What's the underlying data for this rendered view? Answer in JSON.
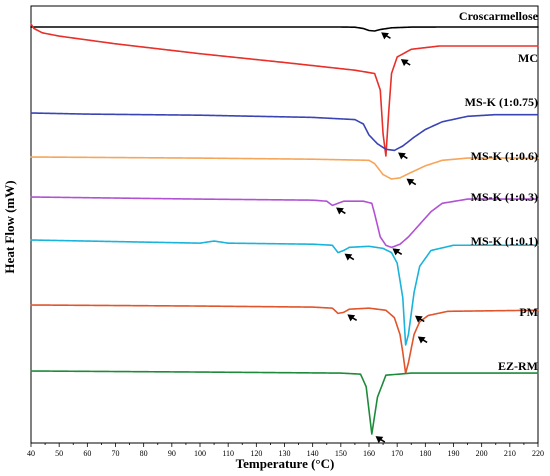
{
  "chart_data": {
    "type": "line",
    "xlabel": "Temperature (°C)",
    "ylabel": "Heat Flow (mW)",
    "xlim": [
      40,
      220
    ],
    "x_ticks": [
      40,
      50,
      60,
      70,
      80,
      90,
      100,
      110,
      120,
      130,
      140,
      150,
      160,
      170,
      180,
      190,
      200,
      210,
      220
    ],
    "series": [
      {
        "name": "Croscarmellose",
        "color": "#000000",
        "points": [
          [
            40,
            0
          ],
          [
            150,
            0
          ],
          [
            155,
            -0.2
          ],
          [
            158,
            -1.5
          ],
          [
            160,
            -3.5
          ],
          [
            162,
            -4
          ],
          [
            164,
            -2.5
          ],
          [
            168,
            -0.8
          ],
          [
            175,
            -0.1
          ],
          [
            185,
            0
          ],
          [
            220,
            0
          ]
        ],
        "arrows": [
          163
        ]
      },
      {
        "name": "MC",
        "color": "#e8302a",
        "points": [
          [
            40,
            0
          ],
          [
            41,
            -4
          ],
          [
            44,
            -8
          ],
          [
            50,
            -11
          ],
          [
            70,
            -18
          ],
          [
            100,
            -27
          ],
          [
            130,
            -35
          ],
          [
            155,
            -42
          ],
          [
            162,
            -45
          ],
          [
            164,
            -60
          ],
          [
            165,
            -100
          ],
          [
            166,
            -120
          ],
          [
            167,
            -80
          ],
          [
            168,
            -45
          ],
          [
            170,
            -30
          ],
          [
            175,
            -23
          ],
          [
            185,
            -20
          ],
          [
            200,
            -20
          ],
          [
            220,
            -20
          ]
        ],
        "arrows": [
          170
        ]
      },
      {
        "name": "MS-K (1:0.75)",
        "color": "#3a44b5",
        "points": [
          [
            40,
            0
          ],
          [
            60,
            -1
          ],
          [
            100,
            -2
          ],
          [
            140,
            -4
          ],
          [
            155,
            -6
          ],
          [
            158,
            -10
          ],
          [
            160,
            -20
          ],
          [
            163,
            -28
          ],
          [
            166,
            -33
          ],
          [
            169,
            -34
          ],
          [
            172,
            -30
          ],
          [
            176,
            -22
          ],
          [
            180,
            -15
          ],
          [
            186,
            -8
          ],
          [
            195,
            -3
          ],
          [
            205,
            -1.5
          ],
          [
            220,
            -1.5
          ]
        ],
        "arrows": [
          169
        ]
      },
      {
        "name": "MS-K (1:0.6)",
        "color": "#f6a55a",
        "points": [
          [
            40,
            0
          ],
          [
            100,
            -1
          ],
          [
            140,
            -2
          ],
          [
            160,
            -3
          ],
          [
            162,
            -6
          ],
          [
            165,
            -16
          ],
          [
            168,
            -20
          ],
          [
            171,
            -19
          ],
          [
            175,
            -14
          ],
          [
            180,
            -8
          ],
          [
            186,
            -3
          ],
          [
            195,
            -1
          ],
          [
            220,
            -1
          ]
        ],
        "arrows": [
          172
        ]
      },
      {
        "name": "MS-K (1:0.3)",
        "color": "#b152d4",
        "points": [
          [
            40,
            0
          ],
          [
            100,
            -2
          ],
          [
            140,
            -3
          ],
          [
            145,
            -4
          ],
          [
            147,
            -8
          ],
          [
            149,
            -6
          ],
          [
            151,
            -4
          ],
          [
            158,
            -4
          ],
          [
            161,
            -6
          ],
          [
            162,
            -16
          ],
          [
            164,
            -38
          ],
          [
            166,
            -46
          ],
          [
            168,
            -48
          ],
          [
            171,
            -45
          ],
          [
            174,
            -38
          ],
          [
            178,
            -26
          ],
          [
            182,
            -14
          ],
          [
            186,
            -6
          ],
          [
            195,
            -2
          ],
          [
            220,
            -2
          ]
        ],
        "arrows": [
          147,
          167
        ]
      },
      {
        "name": "MS-K (1:0.1)",
        "color": "#1ab3db",
        "points": [
          [
            40,
            0
          ],
          [
            100,
            -3
          ],
          [
            105,
            -1
          ],
          [
            110,
            -3
          ],
          [
            140,
            -4
          ],
          [
            147,
            -5
          ],
          [
            149,
            -12
          ],
          [
            151,
            -10
          ],
          [
            153,
            -7
          ],
          [
            160,
            -6
          ],
          [
            165,
            -8
          ],
          [
            168,
            -12
          ],
          [
            170,
            -22
          ],
          [
            172,
            -55
          ],
          [
            173,
            -100
          ],
          [
            174,
            -90
          ],
          [
            176,
            -50
          ],
          [
            178,
            -25
          ],
          [
            182,
            -10
          ],
          [
            190,
            -5
          ],
          [
            220,
            -5
          ]
        ],
        "arrows": [
          150,
          175
        ]
      },
      {
        "name": "PM",
        "color": "#e0552b",
        "points": [
          [
            40,
            0
          ],
          [
            100,
            -1
          ],
          [
            140,
            -2
          ],
          [
            147,
            -3
          ],
          [
            149,
            -8
          ],
          [
            151,
            -7
          ],
          [
            153,
            -4
          ],
          [
            160,
            -3
          ],
          [
            166,
            -5
          ],
          [
            169,
            -12
          ],
          [
            171,
            -28
          ],
          [
            172,
            -45
          ],
          [
            173,
            -65
          ],
          [
            174,
            -55
          ],
          [
            176,
            -28
          ],
          [
            178,
            -16
          ],
          [
            181,
            -10
          ],
          [
            188,
            -6
          ],
          [
            220,
            -5
          ]
        ],
        "arrows": [
          151,
          176
        ]
      },
      {
        "name": "EZ-RM",
        "color": "#1e8a3a",
        "points": [
          [
            40,
            0
          ],
          [
            100,
            -1
          ],
          [
            150,
            -2
          ],
          [
            157,
            -3
          ],
          [
            159,
            -15
          ],
          [
            161,
            -60
          ],
          [
            163,
            -25
          ],
          [
            166,
            -4
          ],
          [
            175,
            -2
          ],
          [
            220,
            -2
          ]
        ],
        "arrows": [
          161
        ]
      }
    ]
  }
}
